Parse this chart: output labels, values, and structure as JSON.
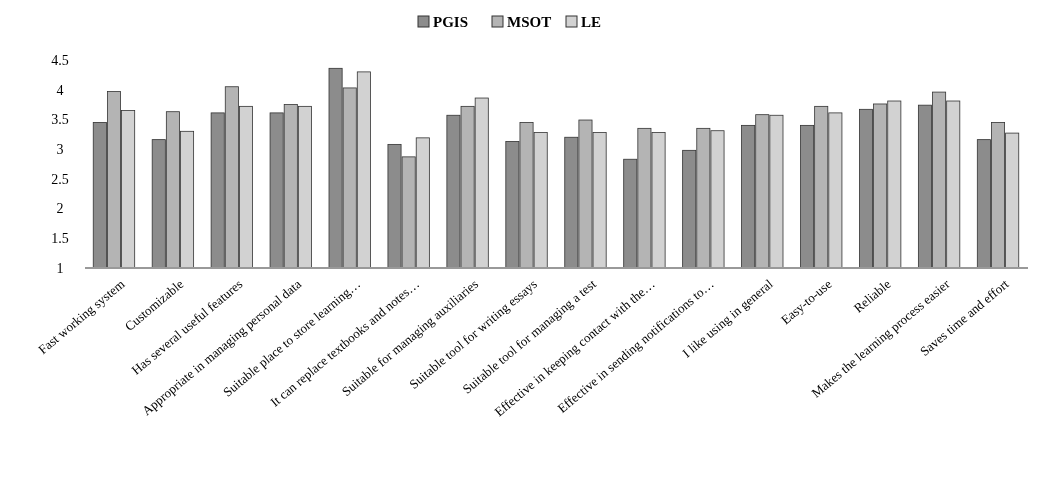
{
  "chart_data": {
    "type": "bar",
    "categories": [
      "Fast working system",
      "Customizable",
      "Has several useful features",
      "Appropriate in managing personal data",
      "Suitable place to store learning…",
      "It can replace textbooks and notes…",
      "Suitable for managing auxiliaries",
      "Suitable tool for writing essays",
      "Suitable tool for managing a test",
      "Effective in keeping contact with the…",
      "Effective in sending notifications to…",
      "I like using in general",
      "Easy-to-use",
      "Reliable",
      "Makes the learning process easier",
      "Saves time and effort"
    ],
    "series": [
      {
        "name": "PGIS",
        "color": "#8c8c8c",
        "values": [
          3.45,
          3.16,
          3.61,
          3.61,
          4.36,
          3.08,
          3.57,
          3.13,
          3.2,
          2.83,
          2.98,
          3.4,
          3.4,
          3.67,
          3.74,
          3.16
        ]
      },
      {
        "name": "MSOT",
        "color": "#b4b4b4",
        "values": [
          3.97,
          3.63,
          4.05,
          3.75,
          4.03,
          2.87,
          3.72,
          3.45,
          3.49,
          3.35,
          3.35,
          3.58,
          3.72,
          3.76,
          3.96,
          3.45
        ]
      },
      {
        "name": "LE",
        "color": "#d2d2d2",
        "values": [
          3.65,
          3.3,
          3.72,
          3.72,
          4.3,
          3.19,
          3.86,
          3.28,
          3.28,
          3.28,
          3.31,
          3.57,
          3.61,
          3.81,
          3.81,
          3.27
        ]
      }
    ],
    "ylim": [
      1,
      4.5
    ],
    "yticks": [
      1,
      1.5,
      2,
      2.5,
      3,
      3.5,
      4,
      4.5
    ],
    "legend": "top",
    "grid": false
  }
}
